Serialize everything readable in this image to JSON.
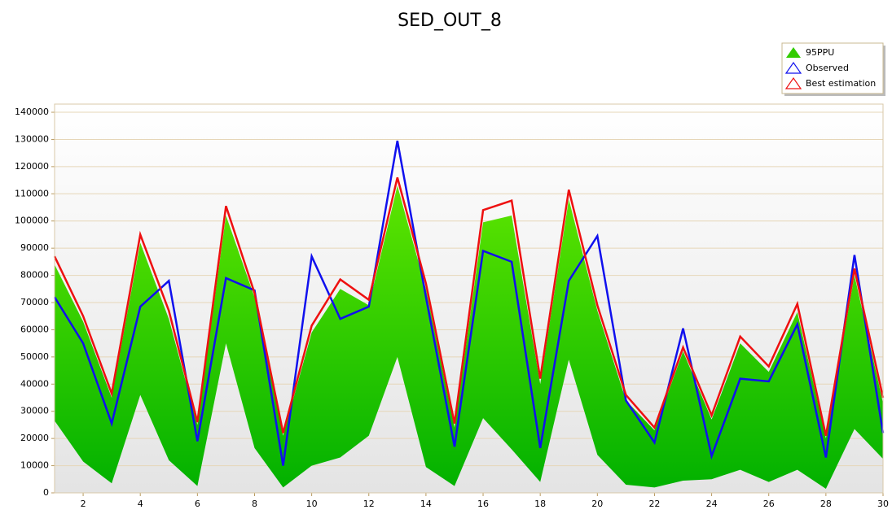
{
  "chart_data": {
    "type": "line",
    "title": "SED_OUT_8",
    "x": [
      1,
      2,
      3,
      4,
      5,
      6,
      7,
      8,
      9,
      10,
      11,
      12,
      13,
      14,
      15,
      16,
      17,
      18,
      19,
      20,
      21,
      22,
      23,
      24,
      25,
      26,
      27,
      28,
      29,
      30
    ],
    "xlim": [
      1,
      30
    ],
    "xticks": [
      2,
      4,
      6,
      8,
      10,
      12,
      14,
      16,
      18,
      20,
      22,
      24,
      26,
      28,
      30
    ],
    "ylim": [
      0,
      143000
    ],
    "yticks": [
      0,
      10000,
      20000,
      30000,
      40000,
      50000,
      60000,
      70000,
      80000,
      90000,
      100000,
      110000,
      120000,
      130000,
      140000
    ],
    "grid": true,
    "legend": "top-right",
    "series": [
      {
        "name": "95PPU",
        "color": "#33cc00",
        "upper": [
          84000,
          63000,
          35000,
          92000,
          64000,
          25000,
          102000,
          72000,
          21000,
          59000,
          75000,
          69000,
          113000,
          75000,
          24000,
          99500,
          102000,
          40000,
          108000,
          67000,
          34000,
          23000,
          52000,
          27000,
          55000,
          44500,
          66500,
          20000,
          80000,
          33000
        ],
        "lower": [
          26500,
          11500,
          3500,
          36000,
          12000,
          2500,
          55000,
          16500,
          2000,
          10000,
          13000,
          21000,
          50000,
          9500,
          2500,
          27500,
          16000,
          4000,
          49000,
          14000,
          3000,
          2000,
          4500,
          5000,
          8500,
          4000,
          8500,
          1500,
          23500,
          12500
        ]
      },
      {
        "name": "Observed",
        "color": "#1010ee",
        "values": [
          72000,
          55000,
          25500,
          68500,
          78000,
          19000,
          79000,
          74500,
          10000,
          87000,
          64000,
          68500,
          129500,
          72000,
          17000,
          89000,
          85000,
          16500,
          78000,
          94500,
          34000,
          18500,
          60500,
          13500,
          42000,
          41000,
          62000,
          13000,
          87500,
          22000
        ]
      },
      {
        "name": "Best estimation",
        "color": "#ee1010",
        "values": [
          87000,
          65000,
          36500,
          95000,
          67000,
          26000,
          105500,
          73500,
          22000,
          61500,
          78500,
          71000,
          116000,
          77000,
          25500,
          104000,
          107500,
          42000,
          111500,
          69000,
          36000,
          24000,
          53500,
          28500,
          57500,
          46500,
          69500,
          21000,
          82500,
          35000
        ]
      }
    ]
  }
}
